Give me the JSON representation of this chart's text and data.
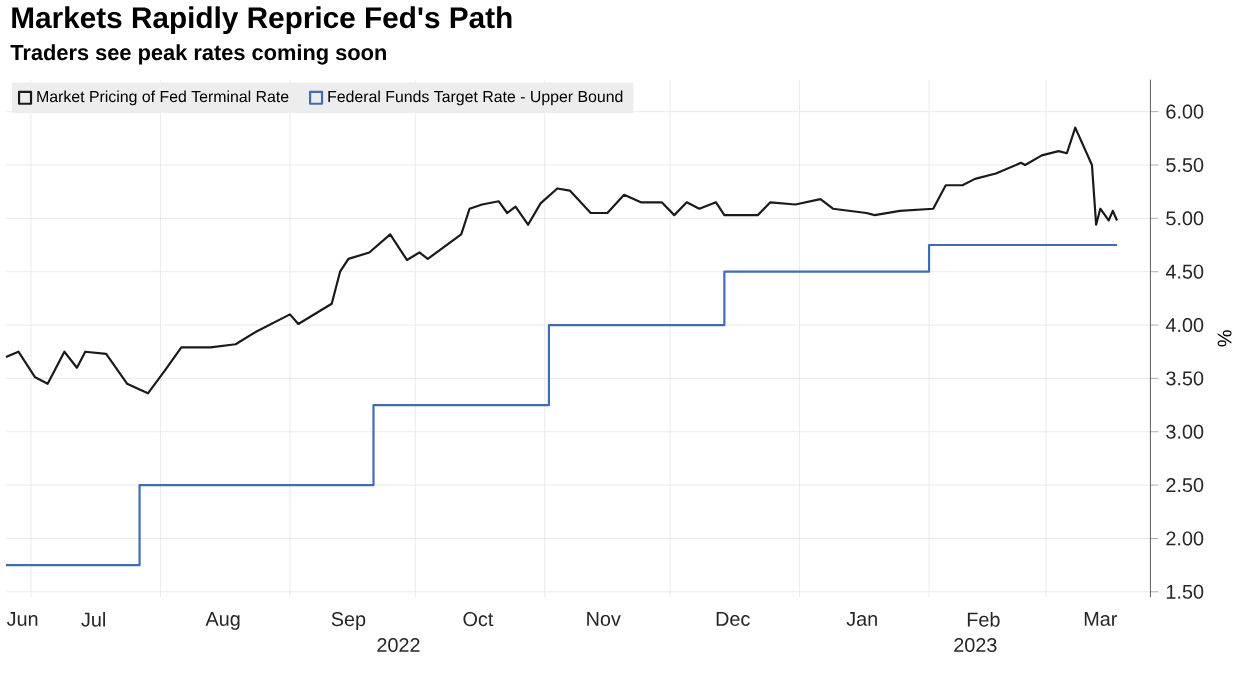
{
  "chart_data": {
    "type": "line",
    "title": "Markets Rapidly Reprice Fed's Path",
    "subtitle": "Traders see peak rates coming soon",
    "ylabel": "%",
    "series": [
      {
        "name": "Market Pricing of Fed Terminal Rate",
        "color": "#1a1a1a",
        "x": [
          "2022-06-25",
          "2022-06-28",
          "2022-07-02",
          "2022-07-05",
          "2022-07-09",
          "2022-07-12",
          "2022-07-14",
          "2022-07-19",
          "2022-07-24",
          "2022-07-29",
          "2022-08-02",
          "2022-08-06",
          "2022-08-13",
          "2022-08-19",
          "2022-08-24",
          "2022-09-01",
          "2022-09-03",
          "2022-09-11",
          "2022-09-13",
          "2022-09-15",
          "2022-09-20",
          "2022-09-25",
          "2022-09-29",
          "2022-10-02",
          "2022-10-04",
          "2022-10-12",
          "2022-10-14",
          "2022-10-17",
          "2022-10-21",
          "2022-10-23",
          "2022-10-25",
          "2022-10-28",
          "2022-10-31",
          "2022-11-04",
          "2022-11-07",
          "2022-11-12",
          "2022-11-16",
          "2022-11-20",
          "2022-11-24",
          "2022-11-29",
          "2022-12-02",
          "2022-12-05",
          "2022-12-08",
          "2022-12-12",
          "2022-12-14",
          "2022-12-22",
          "2022-12-25",
          "2022-12-31",
          "2023-01-06",
          "2023-01-09",
          "2023-01-17",
          "2023-01-19",
          "2023-01-25",
          "2023-02-02",
          "2023-02-05",
          "2023-02-09",
          "2023-02-12",
          "2023-02-17",
          "2023-02-23",
          "2023-02-24",
          "2023-02-28",
          "2023-03-04",
          "2023-03-06",
          "2023-03-08",
          "2023-03-12",
          "2023-03-13",
          "2023-03-14",
          "2023-03-16",
          "2023-03-17",
          "2023-03-18"
        ],
        "values": [
          3.7,
          3.75,
          3.51,
          3.45,
          3.75,
          3.6,
          3.75,
          3.73,
          3.45,
          3.36,
          3.57,
          3.79,
          3.79,
          3.82,
          3.94,
          4.1,
          4.01,
          4.2,
          4.5,
          4.62,
          4.68,
          4.85,
          4.61,
          4.68,
          4.62,
          4.85,
          5.09,
          5.13,
          5.16,
          5.05,
          5.11,
          4.94,
          5.14,
          5.28,
          5.26,
          5.05,
          5.05,
          5.22,
          5.15,
          5.15,
          5.03,
          5.15,
          5.09,
          5.15,
          5.03,
          5.03,
          5.15,
          5.13,
          5.18,
          5.09,
          5.05,
          5.03,
          5.07,
          5.09,
          5.31,
          5.31,
          5.37,
          5.42,
          5.52,
          5.5,
          5.59,
          5.63,
          5.61,
          5.85,
          5.5,
          4.94,
          5.09,
          4.98,
          5.07,
          4.98
        ]
      },
      {
        "name": "Federal Funds Target Rate - Upper Bound",
        "color": "#3e6db5",
        "type": "step",
        "x": [
          "2022-06-25",
          "2022-07-27",
          "2022-09-21",
          "2022-11-02",
          "2022-12-14",
          "2023-02-01",
          "2023-03-18"
        ],
        "values": [
          1.75,
          2.5,
          3.25,
          4.0,
          4.5,
          4.75,
          4.75
        ]
      }
    ],
    "xlim": [
      "2022-06-25",
      "2023-03-26"
    ],
    "xticks": [
      {
        "value": "2022-06-29",
        "label": "Jun"
      },
      {
        "value": "2022-07-01",
        "label": null
      },
      {
        "value": "2022-07-16",
        "label": "Jul"
      },
      {
        "value": "2022-08-01",
        "label": null
      },
      {
        "value": "2022-08-16",
        "label": "Aug"
      },
      {
        "value": "2022-09-01",
        "label": null
      },
      {
        "value": "2022-09-15",
        "label": "Sep"
      },
      {
        "value": "2022-10-01",
        "label": null
      },
      {
        "value": "2022-10-16",
        "label": "Oct"
      },
      {
        "value": "2022-11-01",
        "label": null
      },
      {
        "value": "2022-11-15",
        "label": "Nov"
      },
      {
        "value": "2022-12-01",
        "label": null
      },
      {
        "value": "2022-12-16",
        "label": "Dec"
      },
      {
        "value": "2023-01-01",
        "label": null
      },
      {
        "value": "2023-01-16",
        "label": "Jan"
      },
      {
        "value": "2023-02-01",
        "label": null
      },
      {
        "value": "2023-02-14",
        "label": "Feb"
      },
      {
        "value": "2023-03-01",
        "label": null
      },
      {
        "value": "2023-03-14",
        "label": "Mar"
      }
    ],
    "ylim": [
      1.45,
      6.3
    ],
    "yticks": [
      {
        "value": 1.5,
        "label": "1.50"
      },
      {
        "value": 2.0,
        "label": "2.00"
      },
      {
        "value": 2.5,
        "label": "2.50"
      },
      {
        "value": 3.0,
        "label": "3.00"
      },
      {
        "value": 3.5,
        "label": "3.50"
      },
      {
        "value": 4.0,
        "label": "4.00"
      },
      {
        "value": 4.5,
        "label": "4.50"
      },
      {
        "value": 5.0,
        "label": "5.00"
      },
      {
        "value": 5.5,
        "label": "5.50"
      },
      {
        "value": 6.0,
        "label": "6.00"
      }
    ],
    "annotations": [
      "2022",
      "2023"
    ],
    "grid": true,
    "legend": "top left",
    "marker": "none",
    "line_style": "solid"
  }
}
